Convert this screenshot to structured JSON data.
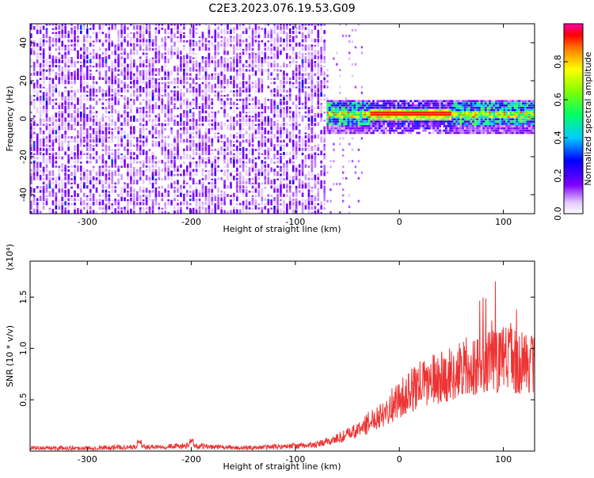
{
  "figure": {
    "title": "C2E3.2023.076.19.53.G09"
  },
  "chart_data": [
    {
      "type": "heatmap",
      "xlabel": "Height of straight line (km)",
      "ylabel": "Frequency (Hz)",
      "xlim": [
        -355,
        130
      ],
      "ylim": [
        -50,
        50
      ],
      "xticks": [
        -300,
        -200,
        -100,
        0,
        100
      ],
      "yticks": [
        -40,
        -20,
        0,
        20,
        40
      ],
      "colorbar": {
        "label": "Normalized spectral amplitude",
        "range": [
          0.0,
          1.0
        ],
        "ticks": [
          0.0,
          0.2,
          0.4,
          0.6,
          0.8
        ],
        "colormap": "rainbow (white-violet-blue-cyan-green-yellow-red-magenta)"
      },
      "regions": [
        {
          "x_range": [
            -355,
            -70
          ],
          "description": "broadband noise across all frequencies",
          "amplitude_approx": 0.2
        },
        {
          "x_range": [
            -70,
            -35
          ],
          "description": "sparse noise columns",
          "amplitude_approx": 0.1
        },
        {
          "x_range": [
            -70,
            130
          ],
          "center_frequency_hz": 1,
          "bandwidth_hz": 6,
          "description": "signal band near 0 Hz",
          "amplitude_approx": 0.9
        }
      ]
    },
    {
      "type": "line",
      "xlabel": "Height of straight line (km)",
      "ylabel": "SNR (10 * v/v)",
      "y_multiplier": "(x10⁴)",
      "xlim": [
        -355,
        130
      ],
      "ylim": [
        0,
        1.85
      ],
      "xticks": [
        -300,
        -200,
        -100,
        0,
        100
      ],
      "yticks": [
        0.5,
        1.0,
        1.5
      ],
      "series": [
        {
          "color": "#ee3333",
          "x": [
            -355,
            -300,
            -250,
            -200,
            -150,
            -100,
            -80,
            -60,
            -40,
            -20,
            0,
            20,
            40,
            60,
            70,
            80,
            90,
            100,
            110,
            120,
            130
          ],
          "y": [
            0.03,
            0.03,
            0.04,
            0.05,
            0.03,
            0.05,
            0.06,
            0.12,
            0.2,
            0.35,
            0.5,
            0.65,
            0.72,
            0.78,
            0.82,
            0.85,
            0.88,
            0.9,
            0.88,
            0.86,
            0.85
          ]
        }
      ]
    }
  ]
}
